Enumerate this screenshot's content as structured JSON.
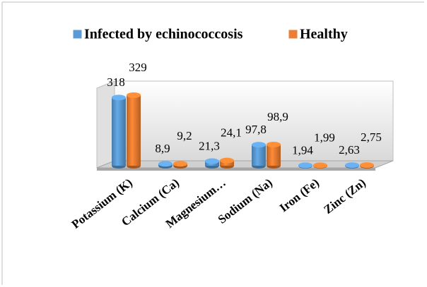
{
  "chart_data": {
    "type": "bar3d",
    "categories": [
      "Potassium (K)",
      "Calcium (Ca)",
      "Magnesium…",
      "Sodium (Na)",
      "Iron (Fe)",
      "Zinc (Zn)"
    ],
    "series": [
      {
        "name": "Infected by echinococcosis",
        "color": "#5b9bd5",
        "values": [
          318,
          8.9,
          21.3,
          97.8,
          1.94,
          2.63
        ],
        "value_labels": [
          "318",
          "8,9",
          "21,3",
          "97,8",
          "1,94",
          "2,63"
        ]
      },
      {
        "name": "Healthy",
        "color": "#ed7d31",
        "values": [
          329,
          9.2,
          24.1,
          98.9,
          1.99,
          2.75
        ],
        "value_labels": [
          "329",
          "9,2",
          "24,1",
          "98,9",
          "1,99",
          "2,75"
        ]
      }
    ],
    "legend": "top"
  }
}
